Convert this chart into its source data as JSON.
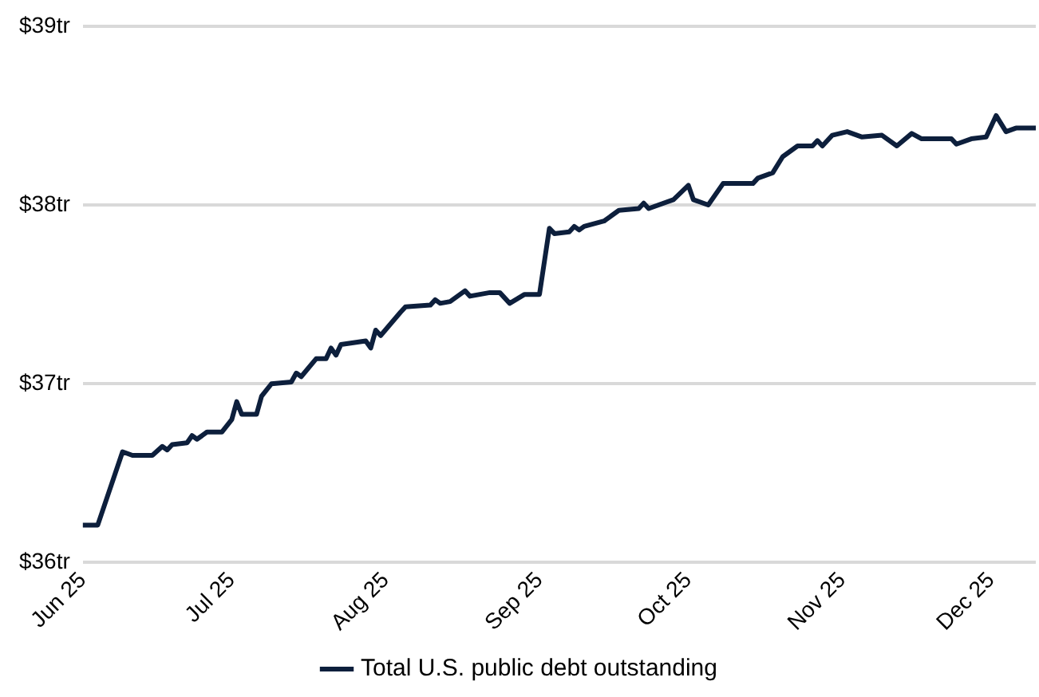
{
  "chart_data": {
    "type": "line",
    "x": [
      "2025-06-01",
      "2025-06-04",
      "2025-06-09",
      "2025-06-11",
      "2025-06-15",
      "2025-06-17",
      "2025-06-18",
      "2025-06-19",
      "2025-06-22",
      "2025-06-23",
      "2025-06-24",
      "2025-06-26",
      "2025-06-29",
      "2025-07-01",
      "2025-07-02",
      "2025-07-03",
      "2025-07-06",
      "2025-07-07",
      "2025-07-09",
      "2025-07-13",
      "2025-07-14",
      "2025-07-15",
      "2025-07-18",
      "2025-07-20",
      "2025-07-21",
      "2025-07-22",
      "2025-07-23",
      "2025-07-28",
      "2025-07-29",
      "2025-07-30",
      "2025-07-31",
      "2025-08-04",
      "2025-08-05",
      "2025-08-10",
      "2025-08-11",
      "2025-08-12",
      "2025-08-14",
      "2025-08-17",
      "2025-08-18",
      "2025-08-22",
      "2025-08-24",
      "2025-08-26",
      "2025-08-29",
      "2025-09-01",
      "2025-09-03",
      "2025-09-04",
      "2025-09-07",
      "2025-09-08",
      "2025-09-09",
      "2025-09-10",
      "2025-09-14",
      "2025-09-17",
      "2025-09-21",
      "2025-09-22",
      "2025-09-23",
      "2025-09-28",
      "2025-10-01",
      "2025-10-02",
      "2025-10-05",
      "2025-10-08",
      "2025-10-14",
      "2025-10-15",
      "2025-10-18",
      "2025-10-20",
      "2025-10-23",
      "2025-10-26",
      "2025-10-27",
      "2025-10-28",
      "2025-10-30",
      "2025-11-02",
      "2025-11-05",
      "2025-11-09",
      "2025-11-12",
      "2025-11-15",
      "2025-11-17",
      "2025-11-23",
      "2025-11-24",
      "2025-11-27",
      "2025-11-30",
      "2025-12-02",
      "2025-12-04",
      "2025-12-06",
      "2025-12-10"
    ],
    "series": [
      {
        "name": "Total U.S. public debt outstanding",
        "color": "#0d1f3c",
        "values": [
          36.21,
          36.21,
          36.62,
          36.6,
          36.6,
          36.65,
          36.63,
          36.66,
          36.67,
          36.71,
          36.69,
          36.73,
          36.73,
          36.8,
          36.9,
          36.83,
          36.83,
          36.93,
          37.0,
          37.01,
          37.06,
          37.04,
          37.14,
          37.14,
          37.2,
          37.16,
          37.22,
          37.24,
          37.2,
          37.3,
          37.27,
          37.4,
          37.43,
          37.44,
          37.47,
          37.45,
          37.46,
          37.52,
          37.49,
          37.51,
          37.51,
          37.45,
          37.5,
          37.5,
          37.87,
          37.84,
          37.85,
          37.88,
          37.86,
          37.88,
          37.91,
          37.97,
          37.98,
          38.01,
          37.98,
          38.03,
          38.11,
          38.03,
          38.0,
          38.12,
          38.12,
          38.15,
          38.18,
          38.27,
          38.33,
          38.33,
          38.36,
          38.33,
          38.39,
          38.41,
          38.38,
          38.39,
          38.33,
          38.4,
          38.37,
          38.37,
          38.34,
          38.37,
          38.38,
          38.5,
          38.41,
          38.43,
          38.43
        ]
      }
    ],
    "xlim": [
      "2025-06-01",
      "2025-12-10"
    ],
    "xticks": [
      {
        "value": "2025-06-01",
        "label": "Jun 25"
      },
      {
        "value": "2025-07-01",
        "label": "Jul 25"
      },
      {
        "value": "2025-08-01",
        "label": "Aug 25"
      },
      {
        "value": "2025-09-01",
        "label": "Sep 25"
      },
      {
        "value": "2025-10-01",
        "label": "Oct 25"
      },
      {
        "value": "2025-11-01",
        "label": "Nov 25"
      },
      {
        "value": "2025-12-01",
        "label": "Dec 25"
      }
    ],
    "ylim": [
      36,
      39
    ],
    "yticks": [
      {
        "value": 36,
        "label": "$36tr"
      },
      {
        "value": 37,
        "label": "$37tr"
      },
      {
        "value": 38,
        "label": "$38tr"
      },
      {
        "value": 39,
        "label": "$39tr"
      }
    ],
    "grid": "y",
    "legend": "bottom",
    "marker": "none",
    "line_style": "solid"
  }
}
